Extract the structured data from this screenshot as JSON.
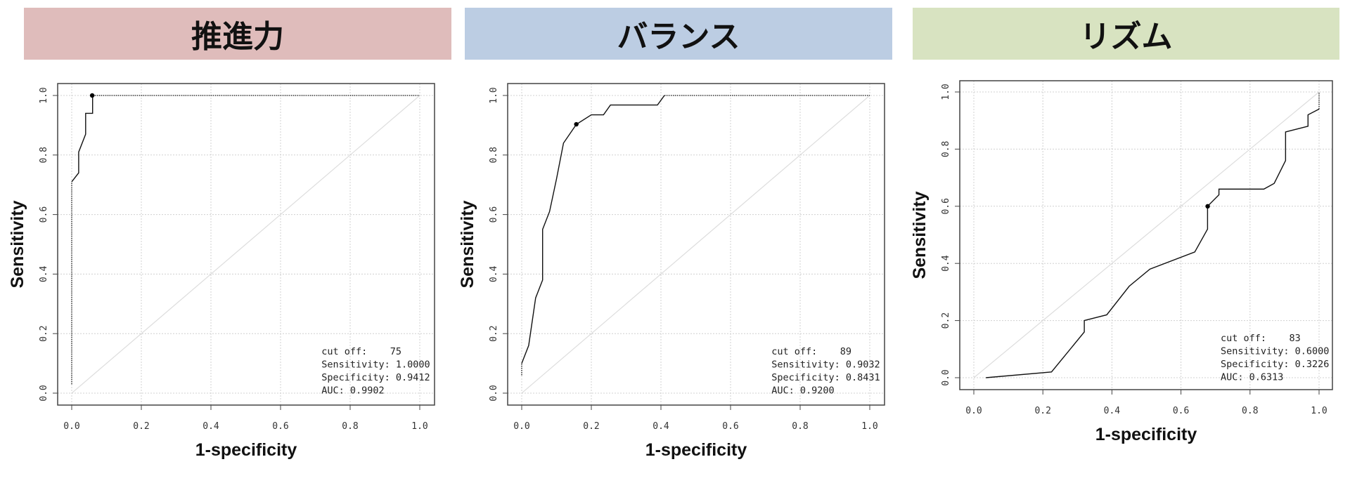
{
  "colors": {
    "header_1": "#dfbcbb",
    "header_2": "#bccde3",
    "header_3": "#d8e3c1",
    "curve": "#111111",
    "diagonal": "#dddddd",
    "grid": "#d0d0d0"
  },
  "chart_data": [
    {
      "type": "line",
      "title": "推進力",
      "xlabel": "1-specificity",
      "ylabel": "Sensitivity",
      "xlim": [
        0,
        1
      ],
      "ylim": [
        0,
        1
      ],
      "xticks": [
        "0.0",
        "0.2",
        "0.4",
        "0.6",
        "0.8",
        "1.0"
      ],
      "yticks": [
        "0.0",
        "0.2",
        "0.4",
        "0.6",
        "0.8",
        "1.0"
      ],
      "grid": true,
      "reference_line": [
        [
          0,
          0
        ],
        [
          1,
          1
        ]
      ],
      "roc": [
        [
          0,
          0.71
        ],
        [
          0.02,
          0.74
        ],
        [
          0.02,
          0.81
        ],
        [
          0.04,
          0.87
        ],
        [
          0.04,
          0.94
        ],
        [
          0.06,
          0.94
        ],
        [
          0.06,
          1.0
        ]
      ],
      "dotted": [
        [
          [
            0,
            0.03
          ],
          [
            0,
            0.71
          ]
        ],
        [
          [
            0.06,
            1.0
          ],
          [
            1,
            1
          ]
        ]
      ],
      "optimal_point": [
        0.0588,
        1.0
      ],
      "annotation": [
        "cut off:    75",
        "Sensitivity: 1.0000",
        "Specificity: 0.9412",
        "AUC: 0.9902"
      ],
      "legend_placement": "bottom-right"
    },
    {
      "type": "line",
      "title": "バランス",
      "xlabel": "1-specificity",
      "ylabel": "Sensitivity",
      "xlim": [
        0,
        1
      ],
      "ylim": [
        0,
        1
      ],
      "xticks": [
        "0.0",
        "0.2",
        "0.4",
        "0.6",
        "0.8",
        "1.0"
      ],
      "yticks": [
        "0.0",
        "0.2",
        "0.4",
        "0.6",
        "0.8",
        "1.0"
      ],
      "grid": true,
      "reference_line": [
        [
          0,
          0
        ],
        [
          1,
          1
        ]
      ],
      "roc": [
        [
          0,
          0.1
        ],
        [
          0.02,
          0.16
        ],
        [
          0.04,
          0.32
        ],
        [
          0.06,
          0.38
        ],
        [
          0.06,
          0.55
        ],
        [
          0.08,
          0.61
        ],
        [
          0.1,
          0.72
        ],
        [
          0.12,
          0.84
        ],
        [
          0.157,
          0.903
        ],
        [
          0.2,
          0.935
        ],
        [
          0.235,
          0.935
        ],
        [
          0.255,
          0.968
        ],
        [
          0.39,
          0.968
        ],
        [
          0.41,
          1.0
        ]
      ],
      "dotted": [
        [
          [
            0,
            0.06
          ],
          [
            0,
            0.1
          ]
        ],
        [
          [
            0.41,
            1.0
          ],
          [
            1,
            1
          ]
        ]
      ],
      "optimal_point": [
        0.1569,
        0.9032
      ],
      "annotation": [
        "cut off:    89",
        "Sensitivity: 0.9032",
        "Specificity: 0.8431",
        "AUC: 0.9200"
      ],
      "legend_placement": "bottom-right"
    },
    {
      "type": "line",
      "title": "リズム",
      "xlabel": "1-specificity",
      "ylabel": "Sensitivity",
      "xlim": [
        0,
        1
      ],
      "ylim": [
        0,
        1
      ],
      "xticks": [
        "0.0",
        "0.2",
        "0.4",
        "0.6",
        "0.8",
        "1.0"
      ],
      "yticks": [
        "0.0",
        "0.2",
        "0.4",
        "0.6",
        "0.8",
        "1.0"
      ],
      "grid": true,
      "reference_line": [
        [
          0,
          0
        ],
        [
          1,
          1
        ]
      ],
      "roc": [
        [
          0.035,
          0.0
        ],
        [
          0.225,
          0.02
        ],
        [
          0.32,
          0.16
        ],
        [
          0.32,
          0.2
        ],
        [
          0.385,
          0.22
        ],
        [
          0.45,
          0.32
        ],
        [
          0.51,
          0.38
        ],
        [
          0.64,
          0.44
        ],
        [
          0.677,
          0.52
        ],
        [
          0.677,
          0.6
        ],
        [
          0.71,
          0.64
        ],
        [
          0.71,
          0.66
        ],
        [
          0.84,
          0.66
        ],
        [
          0.87,
          0.68
        ],
        [
          0.903,
          0.76
        ],
        [
          0.903,
          0.86
        ],
        [
          0.968,
          0.88
        ],
        [
          0.968,
          0.92
        ],
        [
          1.0,
          0.94
        ]
      ],
      "dotted": [
        [
          [
            1,
            0.94
          ],
          [
            1,
            1
          ]
        ]
      ],
      "optimal_point": [
        0.6774,
        0.6
      ],
      "annotation": [
        "cut off:    83",
        "Sensitivity: 0.6000",
        "Specificity: 0.3226",
        "AUC: 0.6313"
      ],
      "legend_placement": "bottom-right"
    }
  ]
}
